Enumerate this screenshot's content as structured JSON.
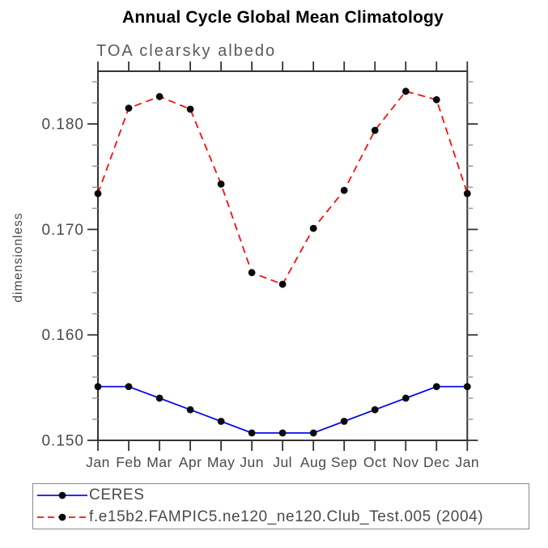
{
  "title": "Annual Cycle Global Mean Climatology",
  "subtitle": "TOA clearsky albedo",
  "colors": {
    "title": "#000000",
    "label_gray": "#4a4a4a",
    "axis": "#333333",
    "minor_tick": "#9a9a9a",
    "ceres_blue": "#0b0bee",
    "model_red": "#fb0d0d",
    "marker_black": "#0a0a0a",
    "legend_border": "#8a8a8a"
  },
  "chart_data": {
    "type": "line",
    "title": "Annual Cycle Global Mean Climatology",
    "subtitle": "TOA clearsky albedo",
    "xlabel": "",
    "ylabel": "dimensionless",
    "x_tick_labels": [
      "Jan",
      "Feb",
      "Mar",
      "Apr",
      "May",
      "Jun",
      "Jul",
      "Aug",
      "Sep",
      "Oct",
      "Nov",
      "Dec",
      "Jan"
    ],
    "ylim": [
      0.15,
      0.185
    ],
    "y_major_ticks": [
      0.15,
      0.16,
      0.17,
      0.18
    ],
    "y_major_tick_labels": [
      "0.150",
      "0.160",
      "0.170",
      "0.180"
    ],
    "y_minor_step": 0.002,
    "grid": false,
    "legend_position": "bottom-left-box",
    "series": [
      {
        "name": "CERES",
        "color": "#0b0bee",
        "line_style": "solid",
        "marker": "black-dot",
        "values": [
          0.1551,
          0.1551,
          0.154,
          0.1529,
          0.1518,
          0.1507,
          0.1507,
          0.1507,
          0.1518,
          0.1529,
          0.154,
          0.1551,
          0.1551
        ]
      },
      {
        "name": "f.e15b2.FAMPIC5.ne120_ne120.Club_Test.005 (2004)",
        "color": "#fb0d0d",
        "line_style": "dashed",
        "marker": "black-dot",
        "values": [
          0.1734,
          0.1815,
          0.1826,
          0.1814,
          0.1743,
          0.1659,
          0.1648,
          0.1701,
          0.1737,
          0.1794,
          0.1831,
          0.1823,
          0.1734
        ]
      }
    ]
  }
}
